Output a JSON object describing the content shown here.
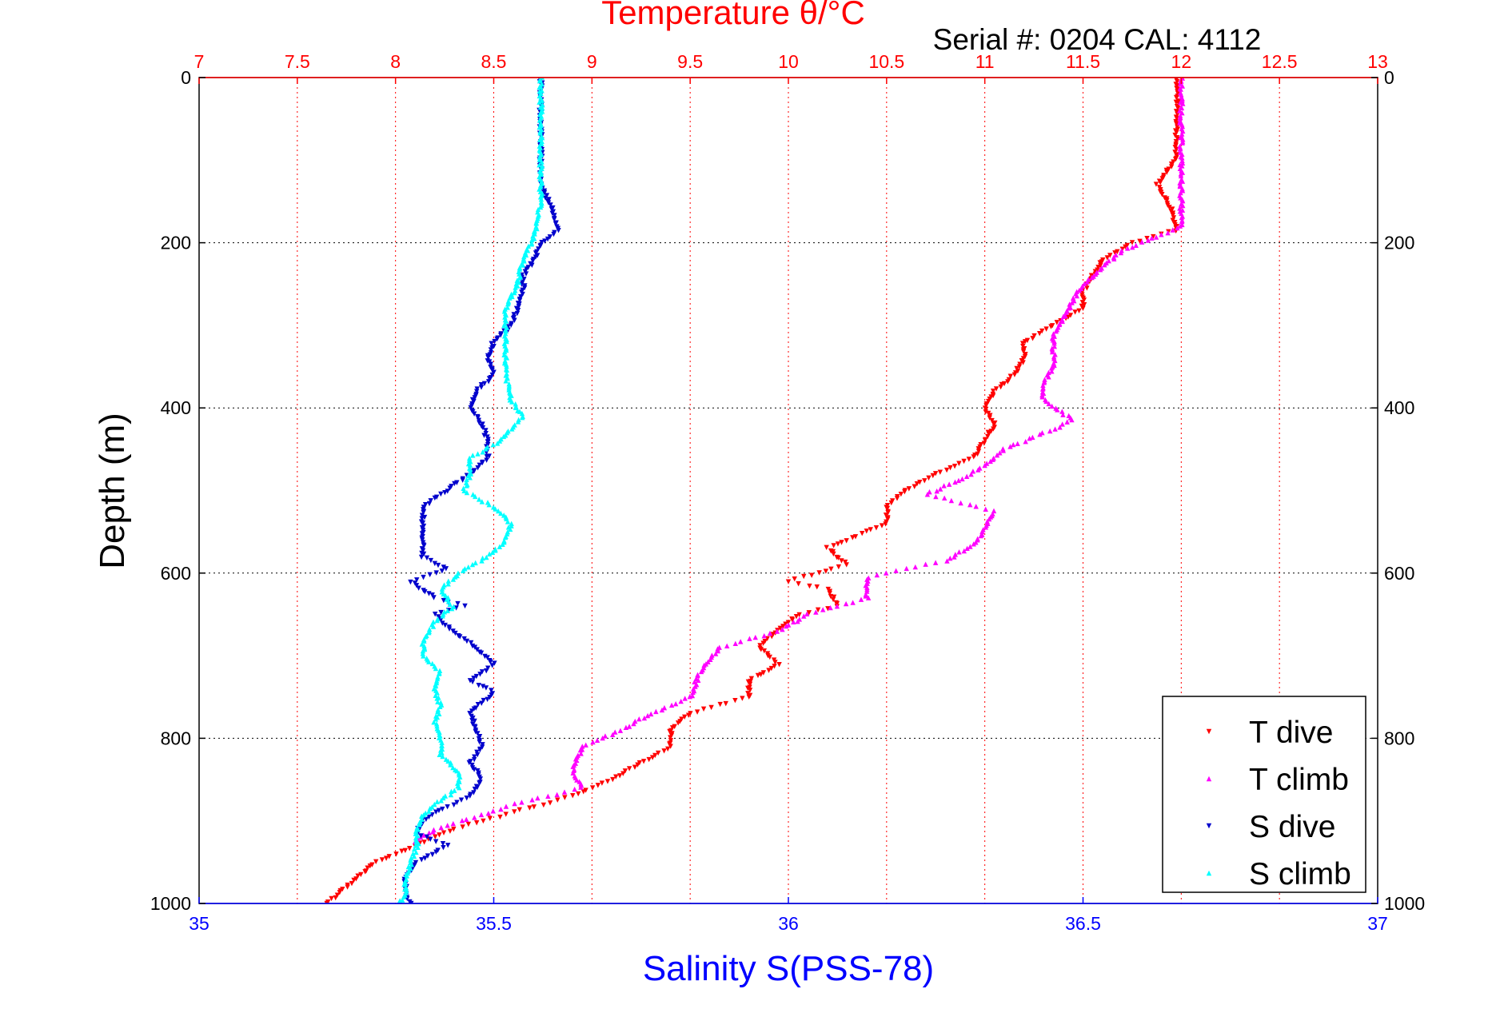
{
  "chart_data": {
    "type": "scatter",
    "title": "Temperature θ/°C",
    "subtitle": "Serial #: 0204  CAL: 4112",
    "ylabel": "Depth (m)",
    "xlabel_bottom": "Salinity S(PSS-78)",
    "xlabel_top": "Temperature θ/°C",
    "ylim": [
      0,
      1000
    ],
    "y_reversed": true,
    "y_ticks": [
      "0",
      "200",
      "400",
      "600",
      "800",
      "1000"
    ],
    "x_bottom_lim": [
      35,
      37
    ],
    "x_bottom_ticks": [
      "35",
      "35.5",
      "36",
      "36.5",
      "37"
    ],
    "x_top_lim": [
      7,
      13
    ],
    "x_top_ticks": [
      "7",
      "7.5",
      "8",
      "8.5",
      "9",
      "9.5",
      "10",
      "10.5",
      "11",
      "11.5",
      "12",
      "12.5",
      "13"
    ],
    "grid": true,
    "legend_position": "bottom-right",
    "series": [
      {
        "name": "T dive",
        "axis": "top",
        "color": "#ff0000",
        "marker": "triangle-down",
        "points": [
          [
            11.98,
            0
          ],
          [
            11.98,
            50
          ],
          [
            11.97,
            100
          ],
          [
            11.88,
            130
          ],
          [
            11.95,
            160
          ],
          [
            11.98,
            185
          ],
          [
            11.75,
            200
          ],
          [
            11.6,
            220
          ],
          [
            11.55,
            240
          ],
          [
            11.5,
            260
          ],
          [
            11.5,
            280
          ],
          [
            11.35,
            300
          ],
          [
            11.2,
            320
          ],
          [
            11.2,
            340
          ],
          [
            11.15,
            360
          ],
          [
            11.05,
            380
          ],
          [
            11.0,
            400
          ],
          [
            11.05,
            420
          ],
          [
            11.0,
            440
          ],
          [
            10.95,
            460
          ],
          [
            10.75,
            480
          ],
          [
            10.6,
            500
          ],
          [
            10.5,
            520
          ],
          [
            10.5,
            540
          ],
          [
            10.3,
            560
          ],
          [
            10.2,
            570
          ],
          [
            10.3,
            590
          ],
          [
            10.0,
            610
          ],
          [
            10.2,
            620
          ],
          [
            10.25,
            640
          ],
          [
            10.05,
            650
          ],
          [
            9.95,
            670
          ],
          [
            9.85,
            690
          ],
          [
            9.95,
            710
          ],
          [
            9.8,
            730
          ],
          [
            9.8,
            750
          ],
          [
            9.5,
            770
          ],
          [
            9.4,
            790
          ],
          [
            9.4,
            810
          ],
          [
            9.25,
            830
          ],
          [
            9.1,
            850
          ],
          [
            8.9,
            870
          ],
          [
            8.6,
            890
          ],
          [
            8.3,
            910
          ],
          [
            8.1,
            930
          ],
          [
            7.9,
            950
          ],
          [
            7.8,
            970
          ],
          [
            7.7,
            990
          ],
          [
            7.65,
            1000
          ]
        ]
      },
      {
        "name": "T climb",
        "axis": "top",
        "color": "#ff00ff",
        "marker": "triangle-up",
        "points": [
          [
            12.0,
            0
          ],
          [
            12.0,
            50
          ],
          [
            12.0,
            100
          ],
          [
            12.0,
            150
          ],
          [
            12.0,
            180
          ],
          [
            11.85,
            195
          ],
          [
            11.7,
            210
          ],
          [
            11.6,
            230
          ],
          [
            11.5,
            250
          ],
          [
            11.45,
            270
          ],
          [
            11.4,
            290
          ],
          [
            11.35,
            310
          ],
          [
            11.35,
            330
          ],
          [
            11.35,
            350
          ],
          [
            11.3,
            370
          ],
          [
            11.3,
            390
          ],
          [
            11.45,
            415
          ],
          [
            11.3,
            430
          ],
          [
            11.1,
            450
          ],
          [
            11.0,
            470
          ],
          [
            10.85,
            490
          ],
          [
            10.7,
            505
          ],
          [
            11.05,
            525
          ],
          [
            11.0,
            545
          ],
          [
            10.95,
            565
          ],
          [
            10.8,
            585
          ],
          [
            10.4,
            605
          ],
          [
            10.4,
            630
          ],
          [
            10.1,
            650
          ],
          [
            9.95,
            670
          ],
          [
            9.65,
            690
          ],
          [
            9.55,
            720
          ],
          [
            9.5,
            750
          ],
          [
            9.3,
            770
          ],
          [
            9.15,
            790
          ],
          [
            8.95,
            810
          ],
          [
            8.9,
            840
          ],
          [
            8.95,
            860
          ],
          [
            8.6,
            880
          ],
          [
            8.4,
            895
          ],
          [
            8.2,
            910
          ],
          [
            8.1,
            925
          ]
        ]
      },
      {
        "name": "S dive",
        "axis": "bottom",
        "color": "#0000cc",
        "marker": "triangle-down",
        "points": [
          [
            35.58,
            0
          ],
          [
            35.58,
            50
          ],
          [
            35.58,
            100
          ],
          [
            35.58,
            130
          ],
          [
            35.6,
            160
          ],
          [
            35.61,
            185
          ],
          [
            35.58,
            200
          ],
          [
            35.57,
            220
          ],
          [
            35.55,
            240
          ],
          [
            35.55,
            260
          ],
          [
            35.54,
            280
          ],
          [
            35.53,
            300
          ],
          [
            35.5,
            320
          ],
          [
            35.49,
            340
          ],
          [
            35.5,
            360
          ],
          [
            35.47,
            380
          ],
          [
            35.46,
            400
          ],
          [
            35.48,
            420
          ],
          [
            35.49,
            440
          ],
          [
            35.49,
            460
          ],
          [
            35.46,
            480
          ],
          [
            35.42,
            500
          ],
          [
            35.38,
            520
          ],
          [
            35.38,
            540
          ],
          [
            35.38,
            560
          ],
          [
            35.38,
            580
          ],
          [
            35.42,
            595
          ],
          [
            35.36,
            610
          ],
          [
            35.4,
            630
          ],
          [
            35.45,
            640
          ],
          [
            35.4,
            650
          ],
          [
            35.43,
            670
          ],
          [
            35.47,
            690
          ],
          [
            35.5,
            710
          ],
          [
            35.46,
            730
          ],
          [
            35.5,
            745
          ],
          [
            35.46,
            770
          ],
          [
            35.47,
            790
          ],
          [
            35.48,
            810
          ],
          [
            35.46,
            830
          ],
          [
            35.48,
            850
          ],
          [
            35.46,
            870
          ],
          [
            35.4,
            890
          ],
          [
            35.38,
            900
          ],
          [
            35.37,
            915
          ],
          [
            35.42,
            930
          ],
          [
            35.37,
            950
          ],
          [
            35.35,
            970
          ],
          [
            35.35,
            990
          ],
          [
            35.36,
            1000
          ]
        ]
      },
      {
        "name": "S climb",
        "axis": "bottom",
        "color": "#00ffff",
        "marker": "triangle-up",
        "points": [
          [
            35.58,
            0
          ],
          [
            35.58,
            50
          ],
          [
            35.58,
            100
          ],
          [
            35.58,
            150
          ],
          [
            35.57,
            190
          ],
          [
            35.55,
            220
          ],
          [
            35.54,
            250
          ],
          [
            35.52,
            280
          ],
          [
            35.52,
            300
          ],
          [
            35.52,
            330
          ],
          [
            35.52,
            360
          ],
          [
            35.53,
            390
          ],
          [
            35.55,
            410
          ],
          [
            35.51,
            440
          ],
          [
            35.46,
            460
          ],
          [
            35.46,
            480
          ],
          [
            35.45,
            500
          ],
          [
            35.5,
            520
          ],
          [
            35.53,
            540
          ],
          [
            35.52,
            560
          ],
          [
            35.49,
            580
          ],
          [
            35.44,
            600
          ],
          [
            35.41,
            620
          ],
          [
            35.43,
            640
          ],
          [
            35.4,
            660
          ],
          [
            35.38,
            680
          ],
          [
            35.38,
            700
          ],
          [
            35.41,
            720
          ],
          [
            35.4,
            740
          ],
          [
            35.41,
            760
          ],
          [
            35.4,
            780
          ],
          [
            35.41,
            800
          ],
          [
            35.41,
            820
          ],
          [
            35.44,
            840
          ],
          [
            35.44,
            860
          ],
          [
            35.4,
            880
          ],
          [
            35.38,
            895
          ],
          [
            35.37,
            910
          ],
          [
            35.37,
            930
          ],
          [
            35.36,
            950
          ],
          [
            35.35,
            970
          ],
          [
            35.35,
            990
          ],
          [
            35.34,
            1000
          ]
        ]
      }
    ]
  }
}
